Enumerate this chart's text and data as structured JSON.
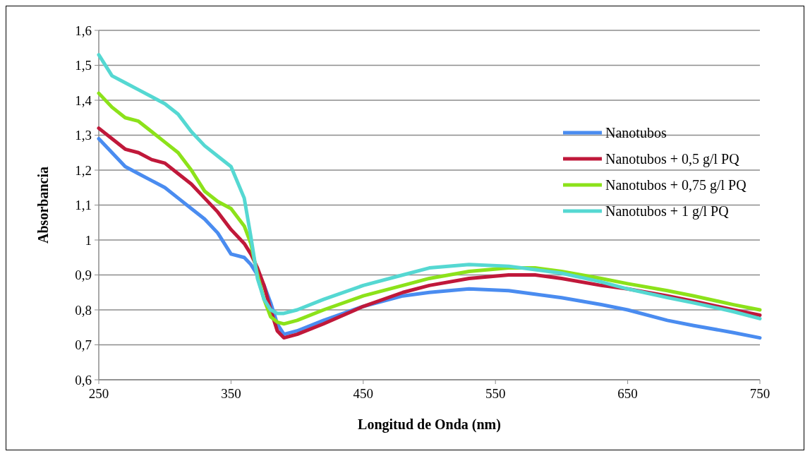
{
  "chart_data": {
    "type": "line",
    "xlabel": "Longitud de Onda (nm)",
    "ylabel": "Absorbancia",
    "x": [
      250,
      260,
      270,
      280,
      290,
      300,
      310,
      320,
      330,
      340,
      350,
      360,
      365,
      370,
      375,
      380,
      385,
      390,
      400,
      420,
      450,
      480,
      500,
      530,
      560,
      580,
      600,
      630,
      650,
      680,
      700,
      730,
      750
    ],
    "series": [
      {
        "name": "Nanotubos",
        "color": "#4a8cf0",
        "values": [
          1.29,
          1.25,
          1.21,
          1.19,
          1.17,
          1.15,
          1.12,
          1.09,
          1.06,
          1.02,
          0.96,
          0.95,
          0.93,
          0.9,
          0.87,
          0.82,
          0.76,
          0.73,
          0.74,
          0.77,
          0.81,
          0.84,
          0.85,
          0.86,
          0.855,
          0.845,
          0.835,
          0.815,
          0.8,
          0.77,
          0.755,
          0.735,
          0.72
        ]
      },
      {
        "name": "Nanotubos + 0,5 g/l PQ",
        "color": "#c0183a",
        "values": [
          1.32,
          1.29,
          1.26,
          1.25,
          1.23,
          1.22,
          1.19,
          1.16,
          1.12,
          1.08,
          1.03,
          0.99,
          0.96,
          0.92,
          0.87,
          0.8,
          0.74,
          0.72,
          0.73,
          0.76,
          0.81,
          0.85,
          0.87,
          0.89,
          0.9,
          0.9,
          0.89,
          0.87,
          0.86,
          0.84,
          0.825,
          0.8,
          0.785
        ]
      },
      {
        "name": "Nanotubos + 0,75 g/l PQ",
        "color": "#8ce21a",
        "values": [
          1.42,
          1.38,
          1.35,
          1.34,
          1.31,
          1.28,
          1.25,
          1.2,
          1.14,
          1.11,
          1.09,
          1.04,
          0.99,
          0.9,
          0.83,
          0.78,
          0.765,
          0.76,
          0.77,
          0.8,
          0.84,
          0.87,
          0.89,
          0.91,
          0.92,
          0.92,
          0.91,
          0.89,
          0.875,
          0.855,
          0.84,
          0.815,
          0.8
        ]
      },
      {
        "name": "Nanotubos + 1 g/l PQ",
        "color": "#55d8d2",
        "values": [
          1.53,
          1.47,
          1.45,
          1.43,
          1.41,
          1.39,
          1.36,
          1.31,
          1.27,
          1.24,
          1.21,
          1.12,
          1.01,
          0.89,
          0.83,
          0.8,
          0.79,
          0.79,
          0.8,
          0.83,
          0.87,
          0.9,
          0.92,
          0.93,
          0.925,
          0.915,
          0.905,
          0.88,
          0.86,
          0.835,
          0.82,
          0.795,
          0.775
        ]
      }
    ],
    "xlim": [
      250,
      750
    ],
    "xticks": [
      250,
      350,
      450,
      550,
      650,
      750
    ],
    "ylim": [
      0.6,
      1.6
    ],
    "yticks": [
      {
        "value": 0.6,
        "label": "0,6"
      },
      {
        "value": 0.7,
        "label": "0,7"
      },
      {
        "value": 0.8,
        "label": "0,8"
      },
      {
        "value": 0.9,
        "label": "0,9"
      },
      {
        "value": 1,
        "label": "1"
      },
      {
        "value": 1.1,
        "label": "1,1"
      },
      {
        "value": 1.2,
        "label": "1,2"
      },
      {
        "value": 1.3,
        "label": "1,3"
      },
      {
        "value": 1.4,
        "label": "1,4"
      },
      {
        "value": 1.5,
        "label": "1,5"
      },
      {
        "value": 1.6,
        "label": "1,6"
      }
    ],
    "grid": "y",
    "legend": "right",
    "marker": "none",
    "line_style": "solid"
  }
}
